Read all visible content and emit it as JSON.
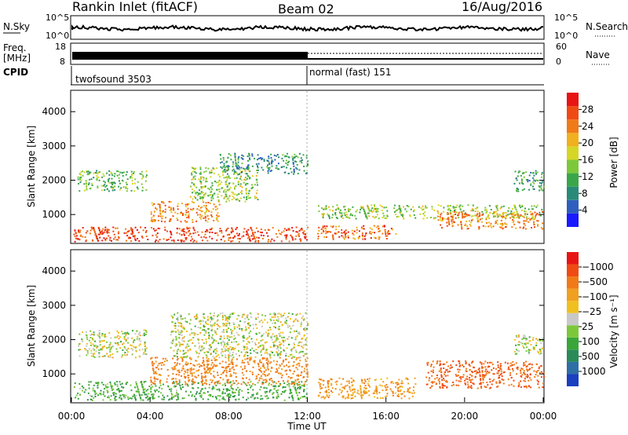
{
  "header": {
    "station": "Rankin Inlet (fitACF)",
    "beam": "Beam 02",
    "date": "16/Aug/2016"
  },
  "noise_panel": {
    "left_label": "N.Sky",
    "right_label": "N.Search",
    "left_ticks": [
      "10^5",
      "10^0"
    ],
    "right_ticks": [
      "10^5",
      "10^0"
    ]
  },
  "freq_panel": {
    "left_label_1": "Freq.",
    "left_label_2": "[MHz]",
    "right_label": "Nave",
    "left_ticks": [
      "18",
      "8"
    ],
    "right_ticks": [
      "60",
      "0"
    ]
  },
  "cpid_panel": {
    "label": "CPID",
    "mode_1": "twofsound 3503",
    "mode_2": "normal (fast) 151",
    "switch_time_h": 12.0
  },
  "chart_data": [
    {
      "type": "heatmap",
      "quantity": "power",
      "xlabel": "",
      "ylabel": "Slant Range [km]",
      "xlim": [
        0,
        24
      ],
      "ylim": [
        180,
        4600
      ],
      "yticks": [
        1000,
        2000,
        3000,
        4000
      ],
      "colorbar": {
        "label": "Power [dB]",
        "ticks": [
          "4",
          "8",
          "12",
          "16",
          "20",
          "24",
          "28"
        ],
        "colors": [
          "#1a1aff",
          "#2e5fbf",
          "#2a8a78",
          "#3aa64a",
          "#7cc83a",
          "#d6d626",
          "#f0b020",
          "#f07a18",
          "#f04a14",
          "#e81414"
        ]
      },
      "echo_regions": [
        {
          "t0": 0.1,
          "t1": 12.0,
          "r0": 220,
          "r1": 650,
          "value": 26
        },
        {
          "t0": 0.3,
          "t1": 3.8,
          "r0": 1700,
          "r1": 2300,
          "value": 12
        },
        {
          "t0": 4.0,
          "t1": 7.5,
          "r0": 800,
          "r1": 1400,
          "value": 22
        },
        {
          "t0": 6.0,
          "t1": 9.5,
          "r0": 1400,
          "r1": 2400,
          "value": 14
        },
        {
          "t0": 7.5,
          "t1": 12.0,
          "r0": 2200,
          "r1": 2800,
          "value": 8
        },
        {
          "t0": 12.5,
          "t1": 16.5,
          "r0": 300,
          "r1": 700,
          "value": 24
        },
        {
          "t0": 12.5,
          "t1": 24.0,
          "r0": 900,
          "r1": 1300,
          "value": 14
        },
        {
          "t0": 18.5,
          "t1": 24.0,
          "r0": 600,
          "r1": 1100,
          "value": 22
        },
        {
          "t0": 22.5,
          "t1": 24.0,
          "r0": 1700,
          "r1": 2300,
          "value": 10
        }
      ]
    },
    {
      "type": "heatmap",
      "quantity": "velocity",
      "xlabel": "Time UT",
      "ylabel": "Slant Range [km]",
      "xlim": [
        0,
        24
      ],
      "ylim": [
        180,
        4600
      ],
      "yticks": [
        1000,
        2000,
        3000,
        4000
      ],
      "xticks": [
        "00:00",
        "04:00",
        "08:00",
        "12:00",
        "16:00",
        "20:00",
        "00:00"
      ],
      "colorbar": {
        "label": "Velocity [m s⁻¹]",
        "ticks": [
          "1000",
          "500",
          "100",
          "25",
          "−25",
          "−100",
          "−500",
          "−1000"
        ],
        "colors": [
          "#1a3fbf",
          "#2e6fa6",
          "#2a8a5a",
          "#3aa63a",
          "#7cc83a",
          "#c8c8c8",
          "#f0c020",
          "#f0a020",
          "#f07a18",
          "#f04a14",
          "#e81414"
        ]
      },
      "echo_regions": [
        {
          "t0": 0.1,
          "t1": 12.0,
          "r0": 250,
          "r1": 800,
          "value": 150
        },
        {
          "t0": 0.3,
          "t1": 3.8,
          "r0": 1500,
          "r1": 2300,
          "value": 0
        },
        {
          "t0": 4.0,
          "t1": 12.0,
          "r0": 700,
          "r1": 1500,
          "value": -300
        },
        {
          "t0": 5.0,
          "t1": 12.0,
          "r0": 1500,
          "r1": 2800,
          "value": 0
        },
        {
          "t0": 12.5,
          "t1": 17.5,
          "r0": 300,
          "r1": 900,
          "value": -200
        },
        {
          "t0": 18.0,
          "t1": 24.0,
          "r0": 600,
          "r1": 1400,
          "value": -500
        },
        {
          "t0": 22.5,
          "t1": 24.0,
          "r0": 1600,
          "r1": 2200,
          "value": 0
        }
      ]
    }
  ]
}
